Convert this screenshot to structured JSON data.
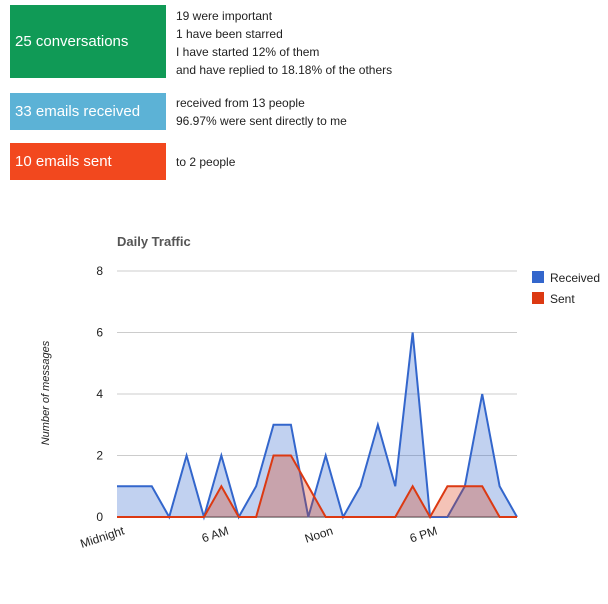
{
  "summary": {
    "conversations": {
      "label": "25 conversations",
      "color": "#109a56",
      "lines": [
        "19 were important",
        "1 have been starred",
        "I have started 12% of them",
        "and have replied to 18.18% of the others"
      ]
    },
    "received": {
      "label": "33 emails received",
      "color": "#5cb2d6",
      "lines": [
        "received from 13 people",
        "96.97% were sent directly to me"
      ]
    },
    "sent": {
      "label": "10 emails sent",
      "color": "#f2481e",
      "lines": [
        "to 2 people"
      ]
    }
  },
  "chart_data": {
    "type": "area",
    "title": "Daily Traffic",
    "xlabel": "",
    "ylabel": "Number of messages",
    "ylim": [
      0,
      8
    ],
    "yticks": [
      0,
      2,
      4,
      6,
      8
    ],
    "x": [
      0,
      1,
      2,
      3,
      4,
      5,
      6,
      7,
      8,
      9,
      10,
      11,
      12,
      13,
      14,
      15,
      16,
      17,
      18,
      19,
      20,
      21,
      22,
      23
    ],
    "xticks": [
      {
        "x": 0,
        "label": "Midnight"
      },
      {
        "x": 6,
        "label": "6 AM"
      },
      {
        "x": 12,
        "label": "Noon"
      },
      {
        "x": 18,
        "label": "6 PM"
      }
    ],
    "series": [
      {
        "name": "Received",
        "color": "#3366cc",
        "values": [
          1,
          1,
          1,
          0,
          2,
          0,
          2,
          0,
          1,
          3,
          3,
          0,
          2,
          0,
          1,
          3,
          1,
          6,
          0,
          0,
          1,
          4,
          1,
          0
        ]
      },
      {
        "name": "Sent",
        "color": "#dc3912",
        "values": [
          0,
          0,
          0,
          0,
          0,
          0,
          1,
          0,
          0,
          2,
          2,
          1,
          0,
          0,
          0,
          0,
          0,
          1,
          0,
          1,
          1,
          1,
          0,
          0
        ]
      }
    ],
    "legend_position": "right",
    "grid": true
  }
}
